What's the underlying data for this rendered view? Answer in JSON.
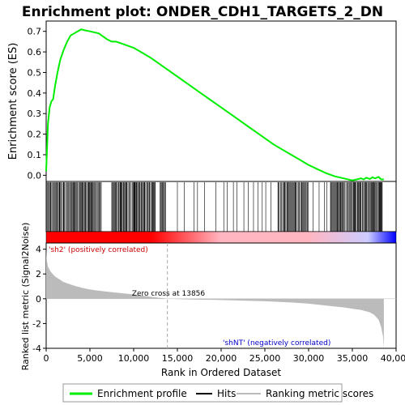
{
  "chart_data": {
    "type": "line",
    "title": "Enrichment plot: ONDER_CDH1_TARGETS_2_DN",
    "xlabel": "Rank in Ordered Dataset",
    "es_panel": {
      "ylabel": "Enrichment score (ES)",
      "ylim": [
        -0.03,
        0.75
      ],
      "yticks": [
        0.0,
        0.1,
        0.2,
        0.3,
        0.4,
        0.5,
        0.6,
        0.7
      ],
      "ytick_labels": [
        "0.0",
        "0.1",
        "0.2",
        "0.3",
        "0.4",
        "0.5",
        "0.6",
        "0.7"
      ],
      "series": [
        {
          "name": "Enrichment profile",
          "color": "#00ee00",
          "x": [
            0,
            200,
            400,
            600,
            800,
            1000,
            1300,
            1600,
            2000,
            2400,
            2800,
            3200,
            3600,
            4000,
            4400,
            5000,
            6000,
            7000,
            7500,
            8000,
            9000,
            10000,
            11000,
            12000,
            13000,
            14000,
            15000,
            16000,
            17000,
            18000,
            19000,
            20000,
            21000,
            22000,
            23000,
            24000,
            25000,
            26000,
            27000,
            28000,
            29000,
            30000,
            31000,
            32000,
            33000,
            34000,
            35000,
            35500,
            36000,
            36300,
            36600,
            37000,
            37300,
            37600,
            38000,
            38300,
            38600
          ],
          "y": [
            0.02,
            0.25,
            0.33,
            0.36,
            0.37,
            0.43,
            0.5,
            0.56,
            0.61,
            0.65,
            0.68,
            0.69,
            0.7,
            0.71,
            0.705,
            0.7,
            0.69,
            0.66,
            0.65,
            0.65,
            0.635,
            0.62,
            0.595,
            0.57,
            0.54,
            0.51,
            0.48,
            0.45,
            0.42,
            0.39,
            0.36,
            0.33,
            0.3,
            0.27,
            0.24,
            0.21,
            0.18,
            0.15,
            0.125,
            0.1,
            0.075,
            0.05,
            0.03,
            0.01,
            -0.005,
            -0.015,
            -0.025,
            -0.02,
            -0.015,
            -0.02,
            -0.012,
            -0.018,
            -0.01,
            -0.015,
            -0.008,
            -0.02,
            -0.02
          ]
        }
      ]
    },
    "hits_panel": {
      "legend_name": "Hits",
      "dense_ranges": [
        [
          0,
          6300
        ],
        [
          7500,
          12500
        ],
        [
          13000,
          13700
        ],
        [
          26500,
          30000
        ],
        [
          32500,
          38500
        ]
      ],
      "sparse_ranges": [
        [
          15000,
          26000
        ]
      ],
      "sparse_hits": [
        15000,
        15800,
        16900,
        17300,
        18100,
        19400,
        20300,
        20700,
        21400,
        21800,
        22600,
        23100,
        23700,
        24200,
        24700,
        25100,
        25700,
        30500,
        31200,
        31800,
        32100
      ]
    },
    "correlation_bar": {
      "positive_label": "'sh2' (positively correlated)",
      "negative_label": "'shNT' (negatively correlated)",
      "colors": [
        "#ff0000",
        "#ffb6c1",
        "#ccccff",
        "#0000ff"
      ]
    },
    "metric_panel": {
      "ylabel": "Ranked list metric (Signal2Noise)",
      "legend_name": "Ranking metric scores",
      "ylim": [
        -4,
        4.5
      ],
      "yticks": [
        -4,
        -2,
        0,
        2,
        4
      ],
      "ytick_labels": [
        "-4",
        "-2",
        "0",
        "2",
        "4"
      ],
      "zero_cross_rank": 13856,
      "zero_cross_label": "Zero cross at 13856",
      "x": [
        0,
        50,
        200,
        500,
        1000,
        2000,
        3000,
        4000,
        5000,
        6000,
        8000,
        10000,
        12000,
        13856,
        16000,
        20000,
        25000,
        28000,
        30000,
        32000,
        34000,
        35000,
        36000,
        37000,
        37500,
        38000,
        38300,
        38500,
        38600
      ],
      "y": [
        4.0,
        3.2,
        2.6,
        2.2,
        1.8,
        1.35,
        1.1,
        0.9,
        0.75,
        0.65,
        0.5,
        0.35,
        0.15,
        0.0,
        -0.05,
        -0.1,
        -0.2,
        -0.3,
        -0.4,
        -0.55,
        -0.7,
        -0.8,
        -0.9,
        -1.1,
        -1.3,
        -1.7,
        -2.3,
        -3.0,
        -4.0
      ]
    },
    "x_axis": {
      "xlim": [
        0,
        40000
      ],
      "ticks": [
        0,
        5000,
        10000,
        15000,
        20000,
        25000,
        30000,
        35000,
        40000
      ],
      "tick_labels": [
        "0",
        "5,000",
        "10,000",
        "15,000",
        "20,000",
        "25,000",
        "30,000",
        "35,000",
        "40,000"
      ]
    },
    "legend": [
      {
        "name": "Enrichment profile",
        "color": "#00ee00"
      },
      {
        "name": "Hits",
        "color": "#000000"
      },
      {
        "name": "Ranking metric scores",
        "color": "#bbbbbb"
      }
    ]
  }
}
